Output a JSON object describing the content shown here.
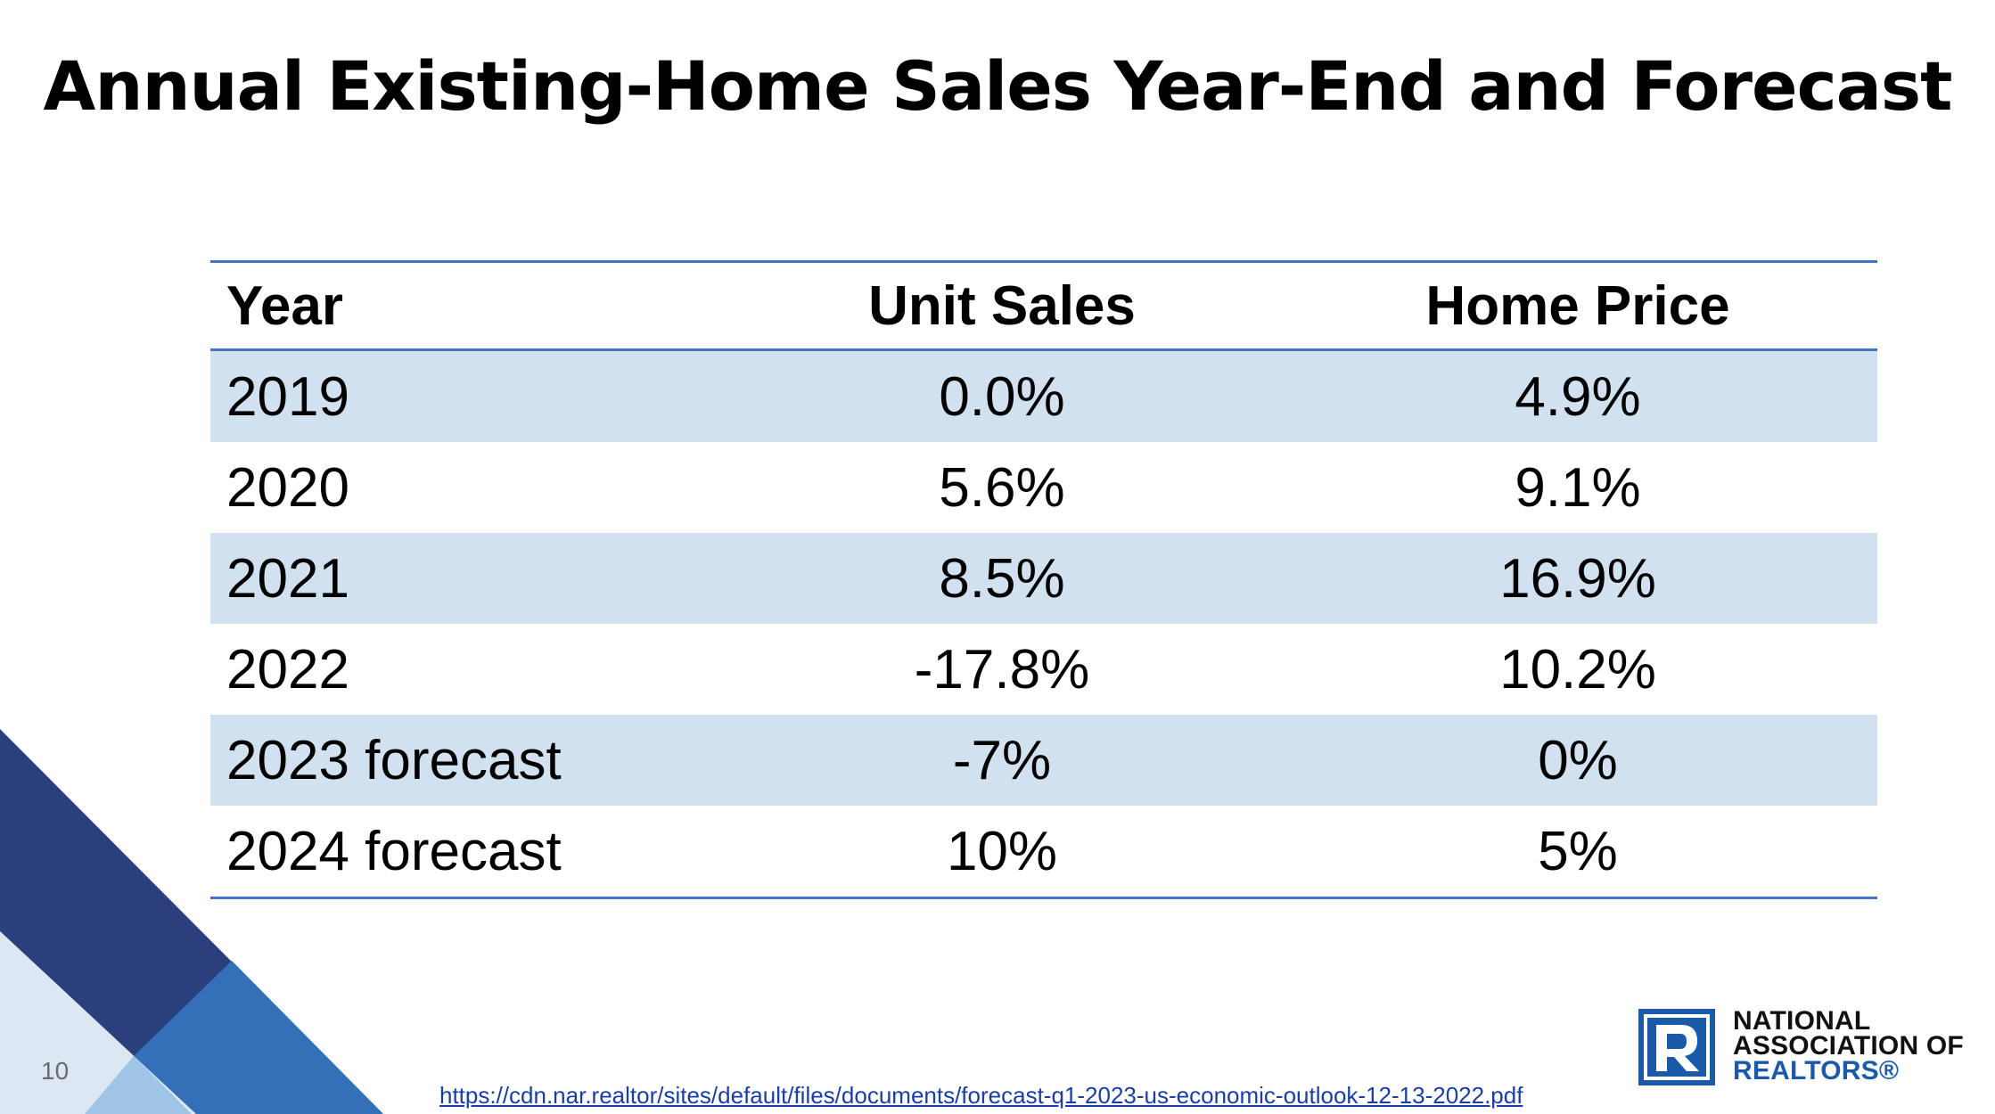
{
  "slide": {
    "title": "Annual Existing-Home Sales Year-End and Forecast",
    "page_number": "10",
    "source_url": "https://cdn.nar.realtor/sites/default/files/documents/forecast-q1-2023-us-economic-outlook-12-13-2022.pdf"
  },
  "table": {
    "headers": [
      "Year",
      "Unit Sales",
      "Home Price"
    ],
    "rows": [
      [
        "2019",
        "0.0%",
        "4.9%"
      ],
      [
        "2020",
        "5.6%",
        "9.1%"
      ],
      [
        "2021",
        "8.5%",
        "16.9%"
      ],
      [
        "2022",
        "-17.8%",
        "10.2%"
      ],
      [
        "2023 forecast",
        "-7%",
        "0%"
      ],
      [
        "2024 forecast",
        "10%",
        "5%"
      ]
    ]
  },
  "logo": {
    "line1": "NATIONAL",
    "line2": "ASSOCIATION OF",
    "line3": "REALTORS®",
    "icon": "realtor-r-logo-icon"
  },
  "colors": {
    "accent": "#4472c4",
    "row_shade": "#d2e1ef",
    "deco_dark": "#2a3f7c",
    "deco_mid": "#3470b8",
    "deco_light": "#9fc4e6",
    "logo_blue": "#1b5aa8"
  }
}
